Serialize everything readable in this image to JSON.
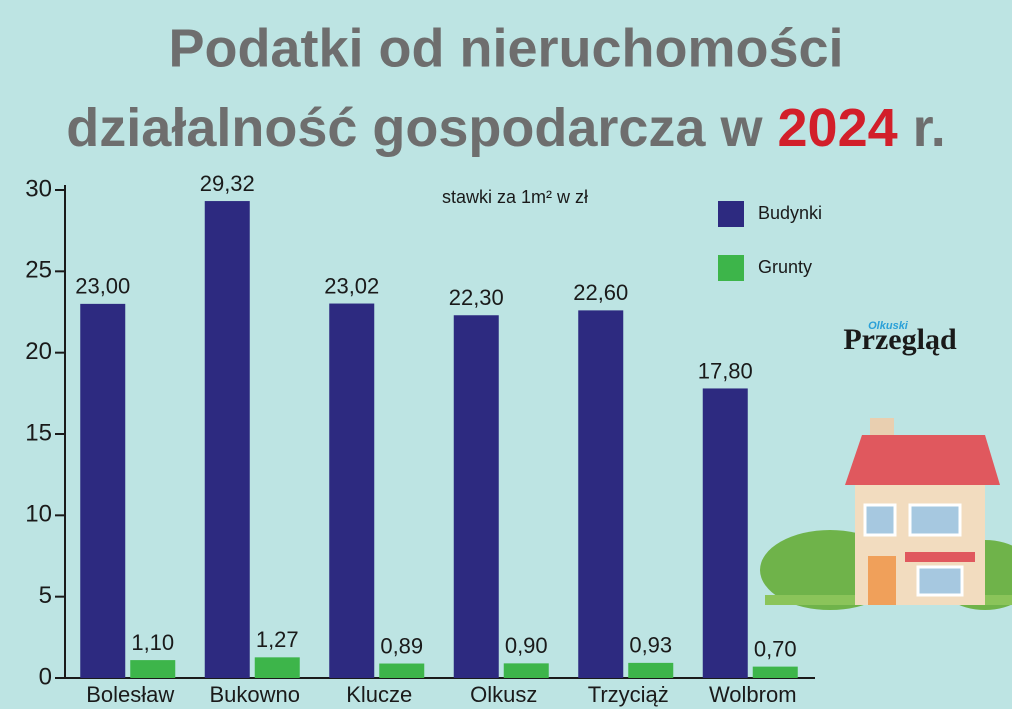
{
  "chart_data": {
    "type": "bar",
    "title": {
      "line1": "Podatki od nieruchomości",
      "line2": [
        "działalność gospodarcza w",
        "2024",
        "r."
      ]
    },
    "subtitle": "stawki za 1m² w zł",
    "logo": [
      "Olkuski",
      "Przegląd"
    ],
    "categories": [
      "Bolesław",
      "Bukowno",
      "Klucze",
      "Olkusz",
      "Trzyciąż",
      "Wolbrom"
    ],
    "series": [
      {
        "name": "Budynki",
        "color": "#2d2a80",
        "values": [
          23.0,
          29.32,
          23.02,
          22.3,
          22.6,
          17.8
        ],
        "value_labels": [
          "23,00",
          "29,32",
          "23,02",
          "22,30",
          "22,60",
          "17,80"
        ]
      },
      {
        "name": "Grunty",
        "color": "#3db54a",
        "values": [
          1.1,
          1.27,
          0.89,
          0.9,
          0.93,
          0.7
        ],
        "value_labels": [
          "1,10",
          "1,27",
          "0,89",
          "0,90",
          "0,93",
          "0,70"
        ]
      }
    ],
    "ylim": [
      0,
      30
    ],
    "yticks": [
      0,
      5,
      10,
      15,
      20,
      25,
      30
    ],
    "grid": false
  }
}
